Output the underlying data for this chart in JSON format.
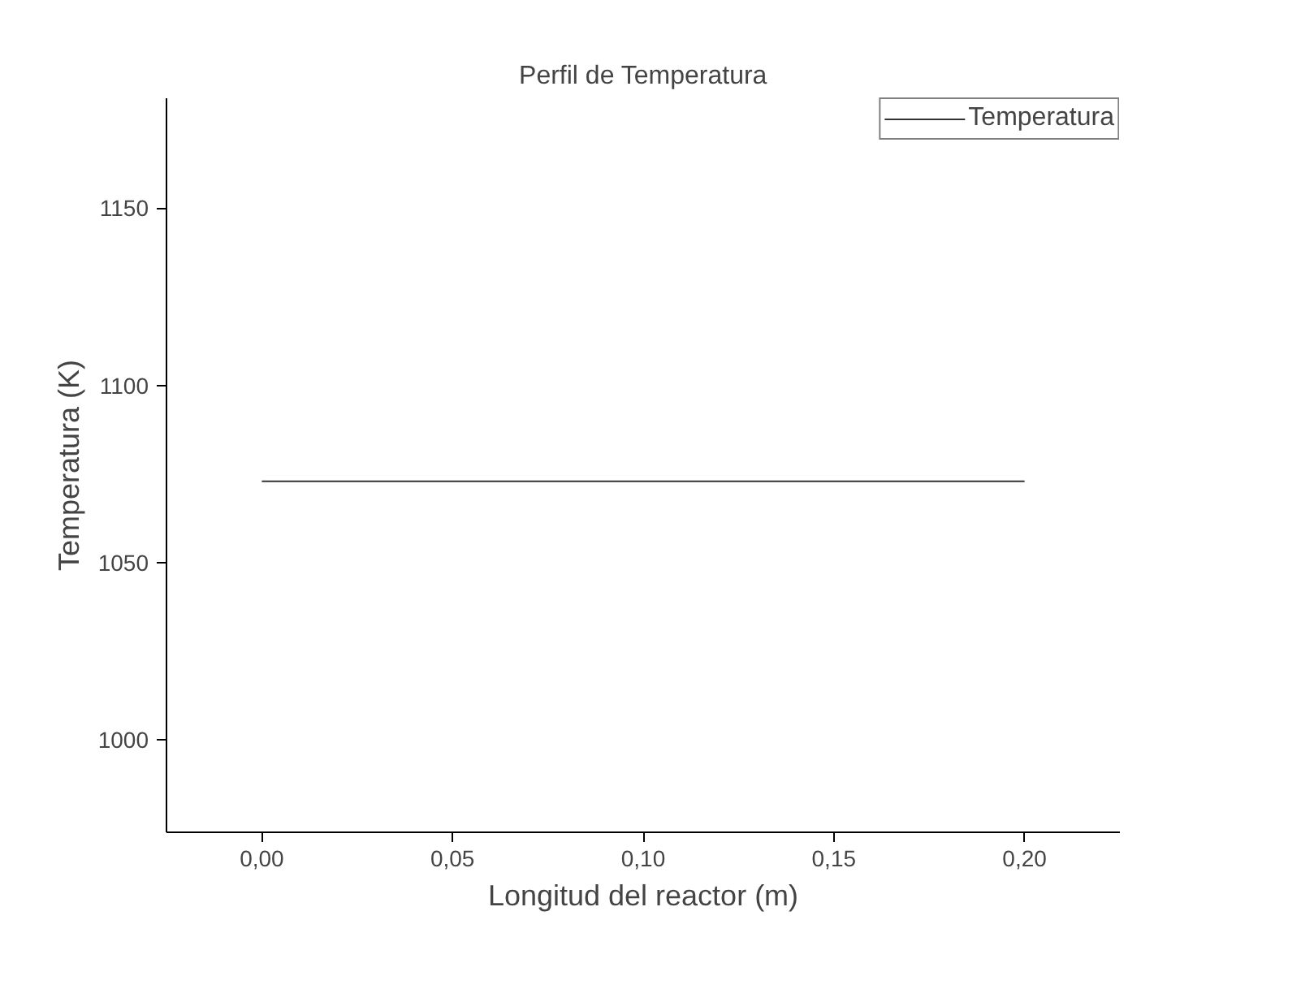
{
  "chart_data": {
    "type": "line",
    "title": "Perfil de Temperatura",
    "xlabel": "Longitud del reactor (m)",
    "ylabel": "Temperatura (K)",
    "x": [
      0,
      0.2
    ],
    "series": [
      {
        "name": "Temperatura",
        "color": "#333333",
        "values": [
          1073,
          1073
        ]
      }
    ],
    "xlim": [
      -0.025,
      0.225
    ],
    "xticks": [
      {
        "value": 0,
        "label": "0,00"
      },
      {
        "value": 0.05,
        "label": "0,05"
      },
      {
        "value": 0.1,
        "label": "0,10"
      },
      {
        "value": 0.15,
        "label": "0,15"
      },
      {
        "value": 0.2,
        "label": "0,20"
      }
    ],
    "ylim": [
      974,
      1181
    ],
    "yticks": [
      1000,
      1050,
      1100,
      1150
    ],
    "grid": false,
    "legend": "top right",
    "marker": "none",
    "line_style": "solid"
  }
}
